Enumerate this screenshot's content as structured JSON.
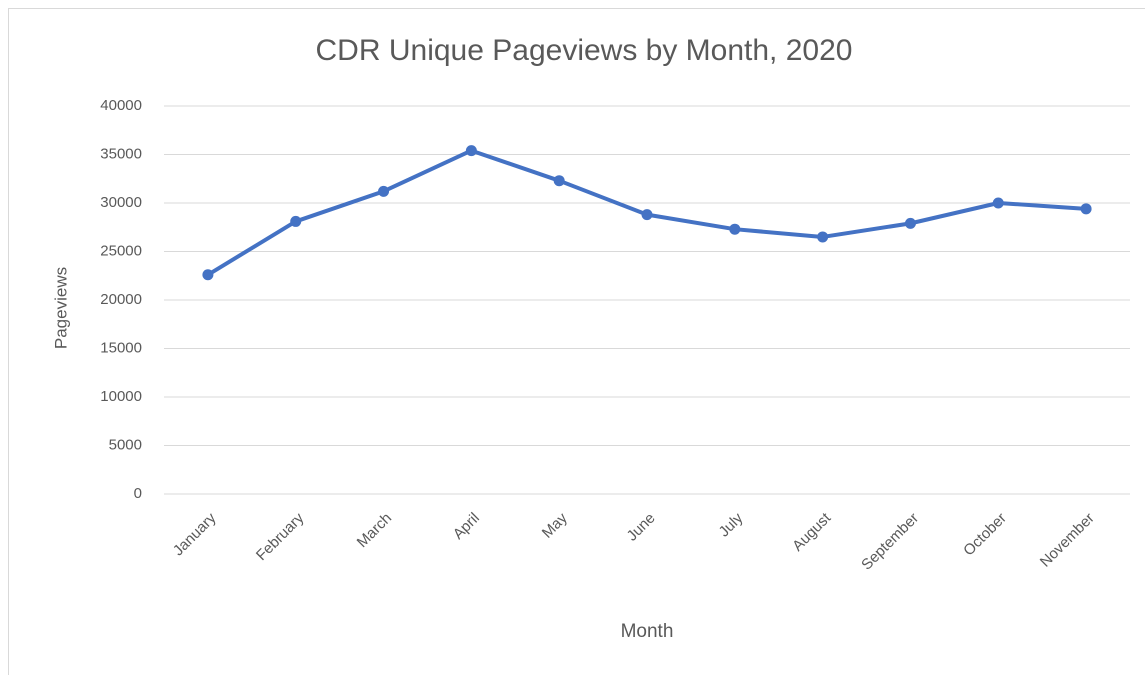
{
  "chart_data": {
    "type": "line",
    "title": "CDR Unique Pageviews by Month, 2020",
    "x_label": "Month",
    "y_label": "Pageviews",
    "categories": [
      "January",
      "February",
      "March",
      "April",
      "May",
      "June",
      "July",
      "August",
      "September",
      "October",
      "November"
    ],
    "series": [
      {
        "name": "Pageviews",
        "color": "#4472c4",
        "values": [
          22600,
          28100,
          31200,
          35400,
          32300,
          28800,
          27300,
          26500,
          27900,
          30000,
          29400
        ]
      }
    ],
    "ylim": [
      0,
      40000
    ],
    "yticks": [
      0,
      5000,
      10000,
      15000,
      20000,
      25000,
      30000,
      35000,
      40000
    ],
    "grid": true
  }
}
